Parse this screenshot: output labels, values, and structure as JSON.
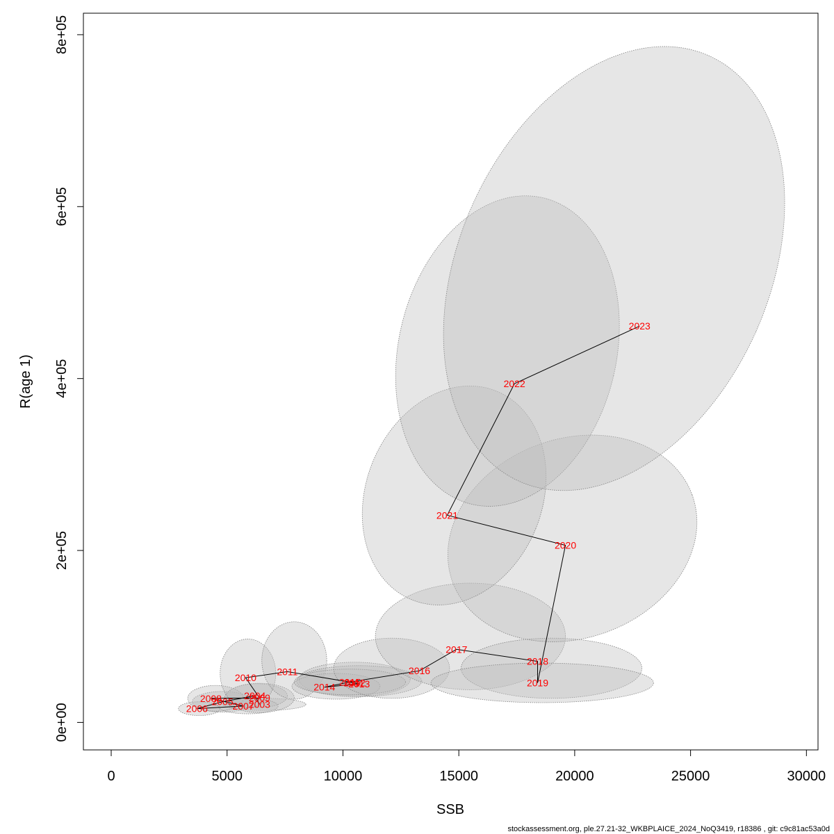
{
  "chart_data": {
    "type": "scatter",
    "title": "",
    "xlabel": "SSB",
    "ylabel": "R(age 1)",
    "xlim": [
      -1200,
      30500
    ],
    "ylim": [
      -32000,
      825000
    ],
    "x_ticks": [
      0,
      5000,
      10000,
      15000,
      20000,
      25000,
      30000
    ],
    "x_tick_labels": [
      "0",
      "5000",
      "10000",
      "15000",
      "20000",
      "25000",
      "30000"
    ],
    "y_ticks": [
      0,
      200000,
      400000,
      600000,
      800000
    ],
    "y_tick_labels": [
      "0e+00",
      "2e+05",
      "4e+05",
      "6e+05",
      "8e+05"
    ],
    "grid": false,
    "line_color": "#000000",
    "label_color": "#ff0000",
    "ellipse_fill": "#bebebe",
    "ellipse_stroke": "#808080",
    "points": [
      {
        "year": "2003",
        "ssb": 6400,
        "rec": 21000
      },
      {
        "year": "2004",
        "ssb": 6200,
        "rec": 31000
      },
      {
        "year": "2005",
        "ssb": 4800,
        "rec": 24000
      },
      {
        "year": "2006",
        "ssb": 3700,
        "rec": 16000
      },
      {
        "year": "2007",
        "ssb": 5700,
        "rec": 19000
      },
      {
        "year": "2008",
        "ssb": 4300,
        "rec": 28000
      },
      {
        "year": "2009",
        "ssb": 6400,
        "rec": 28500
      },
      {
        "year": "2010",
        "ssb": 5800,
        "rec": 52000
      },
      {
        "year": "2011",
        "ssb": 7600,
        "rec": 59000
      },
      {
        "year": "2012",
        "ssb": 10500,
        "rec": 46000
      },
      {
        "year": "2013",
        "ssb": 10700,
        "rec": 45000
      },
      {
        "year": "2014",
        "ssb": 9200,
        "rec": 41000
      },
      {
        "year": "2015",
        "ssb": 10300,
        "rec": 47000
      },
      {
        "year": "2016",
        "ssb": 13300,
        "rec": 60000
      },
      {
        "year": "2017",
        "ssb": 14900,
        "rec": 85000
      },
      {
        "year": "2018",
        "ssb": 18400,
        "rec": 71000
      },
      {
        "year": "2019",
        "ssb": 18400,
        "rec": 46000
      },
      {
        "year": "2020",
        "ssb": 19600,
        "rec": 206000
      },
      {
        "year": "2021",
        "ssb": 14500,
        "rec": 241000
      },
      {
        "year": "2022",
        "ssb": 17400,
        "rec": 394000
      },
      {
        "year": "2023",
        "ssb": 22800,
        "rec": 461000
      }
    ],
    "ellipses": [
      {
        "year": "2003",
        "cx": 6600,
        "cy": 21000,
        "rx": 1800,
        "ry": 7000,
        "rot": 0
      },
      {
        "year": "2004",
        "cx": 6300,
        "cy": 31000,
        "rx": 1300,
        "ry": 14000,
        "rot": 0
      },
      {
        "year": "2005",
        "cx": 4800,
        "cy": 24000,
        "rx": 1300,
        "ry": 12000,
        "rot": 0
      },
      {
        "year": "2006",
        "cx": 3800,
        "cy": 16000,
        "rx": 900,
        "ry": 8000,
        "rot": 0
      },
      {
        "year": "2007",
        "cx": 5900,
        "cy": 19000,
        "rx": 1300,
        "ry": 9000,
        "rot": 0
      },
      {
        "year": "2008",
        "cx": 4500,
        "cy": 28000,
        "rx": 1200,
        "ry": 15000,
        "rot": 0
      },
      {
        "year": "2009",
        "cx": 6400,
        "cy": 28500,
        "rx": 1500,
        "ry": 17000,
        "rot": 0
      },
      {
        "year": "2010",
        "cx": 5900,
        "cy": 57000,
        "rx": 1200,
        "ry": 40000,
        "rot": 0
      },
      {
        "year": "2011",
        "cx": 7900,
        "cy": 72000,
        "rx": 1400,
        "ry": 45000,
        "rot": 0
      },
      {
        "year": "2012",
        "cx": 10500,
        "cy": 50000,
        "rx": 2400,
        "ry": 20000,
        "rot": 0
      },
      {
        "year": "2013",
        "cx": 10700,
        "cy": 48000,
        "rx": 2700,
        "ry": 18000,
        "rot": 0
      },
      {
        "year": "2014",
        "cx": 9700,
        "cy": 42000,
        "rx": 1900,
        "ry": 15000,
        "rot": 0
      },
      {
        "year": "2015",
        "cx": 10300,
        "cy": 47000,
        "rx": 2400,
        "ry": 15000,
        "rot": 0
      },
      {
        "year": "2016",
        "cx": 12100,
        "cy": 63000,
        "rx": 2500,
        "ry": 35000,
        "rot": 0
      },
      {
        "year": "2017",
        "cx": 15500,
        "cy": 100000,
        "rx": 4100,
        "ry": 62000,
        "rot": 0
      },
      {
        "year": "2018",
        "cx": 19000,
        "cy": 63000,
        "rx": 3900,
        "ry": 35000,
        "rot": 0
      },
      {
        "year": "2019",
        "cx": 18600,
        "cy": 46000,
        "rx": 4800,
        "ry": 23000,
        "rot": 0
      },
      {
        "year": "2020",
        "cx": 19900,
        "cy": 214000,
        "rx": 5500,
        "ry": 116000,
        "rot": -20
      },
      {
        "year": "2021",
        "cx": 14800,
        "cy": 264000,
        "rx": 3800,
        "ry": 131000,
        "rot": 22
      },
      {
        "year": "2022",
        "cx": 17100,
        "cy": 432000,
        "rx": 4700,
        "ry": 183000,
        "rot": 13
      },
      {
        "year": "2023",
        "cx": 21700,
        "cy": 528000,
        "rx": 6700,
        "ry": 271000,
        "rot": 24
      }
    ]
  },
  "footer": "stockassessment.org, ple.27.21-32_WKBPLAICE_2024_NoQ3419, r18386 , git: c9c81ac53a0d"
}
